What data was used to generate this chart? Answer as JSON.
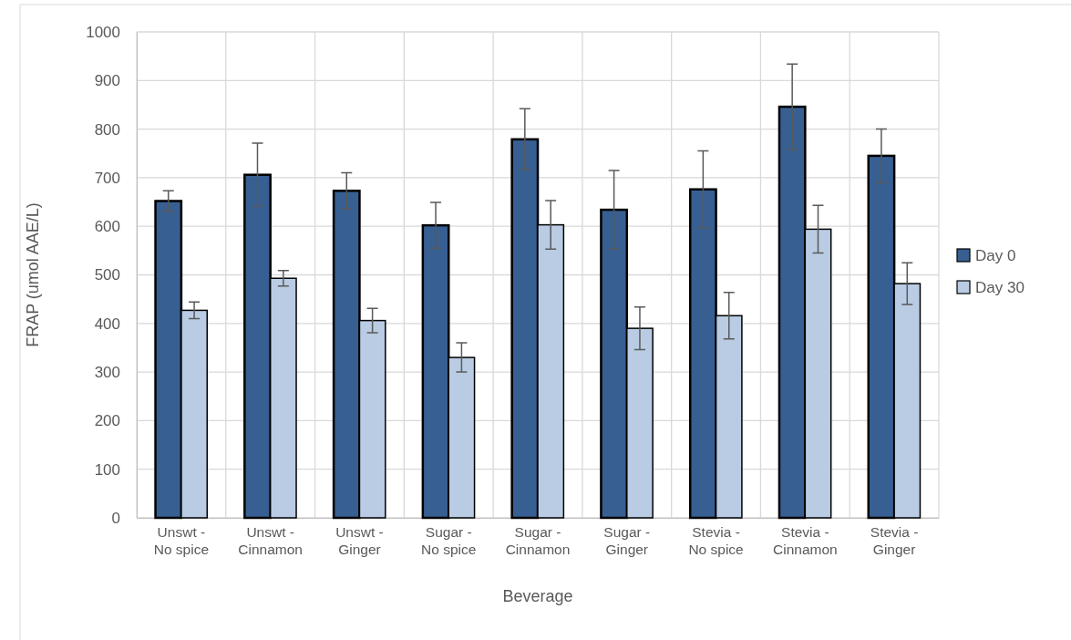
{
  "chart_data": {
    "type": "bar",
    "xlabel": "Beverage",
    "ylabel": "FRAP (umol AAE/L)",
    "categories": [
      "Unswt - No spice",
      "Unswt - Cinnamon",
      "Unswt - Ginger",
      "Sugar - No spice",
      "Sugar - Cinnamon",
      "Sugar - Ginger",
      "Stevia - No spice",
      "Stevia - Cinnamon",
      "Stevia - Ginger"
    ],
    "series": [
      {
        "name": "Day 0",
        "color": "#375f92",
        "values": [
          652,
          706,
          673,
          602,
          779,
          634,
          676,
          846,
          745
        ],
        "errors": [
          21,
          65,
          37,
          47,
          63,
          81,
          79,
          88,
          55
        ]
      },
      {
        "name": "Day 30",
        "color": "#b9cce4",
        "values": [
          427,
          493,
          406,
          330,
          603,
          390,
          416,
          594,
          482
        ],
        "errors": [
          17,
          16,
          25,
          30,
          50,
          44,
          48,
          49,
          43
        ]
      }
    ],
    "ylim": [
      0,
      1000
    ],
    "yticks": [
      0,
      100,
      200,
      300,
      400,
      500,
      600,
      700,
      800,
      900,
      1000
    ],
    "grid": true,
    "legend": "right"
  }
}
